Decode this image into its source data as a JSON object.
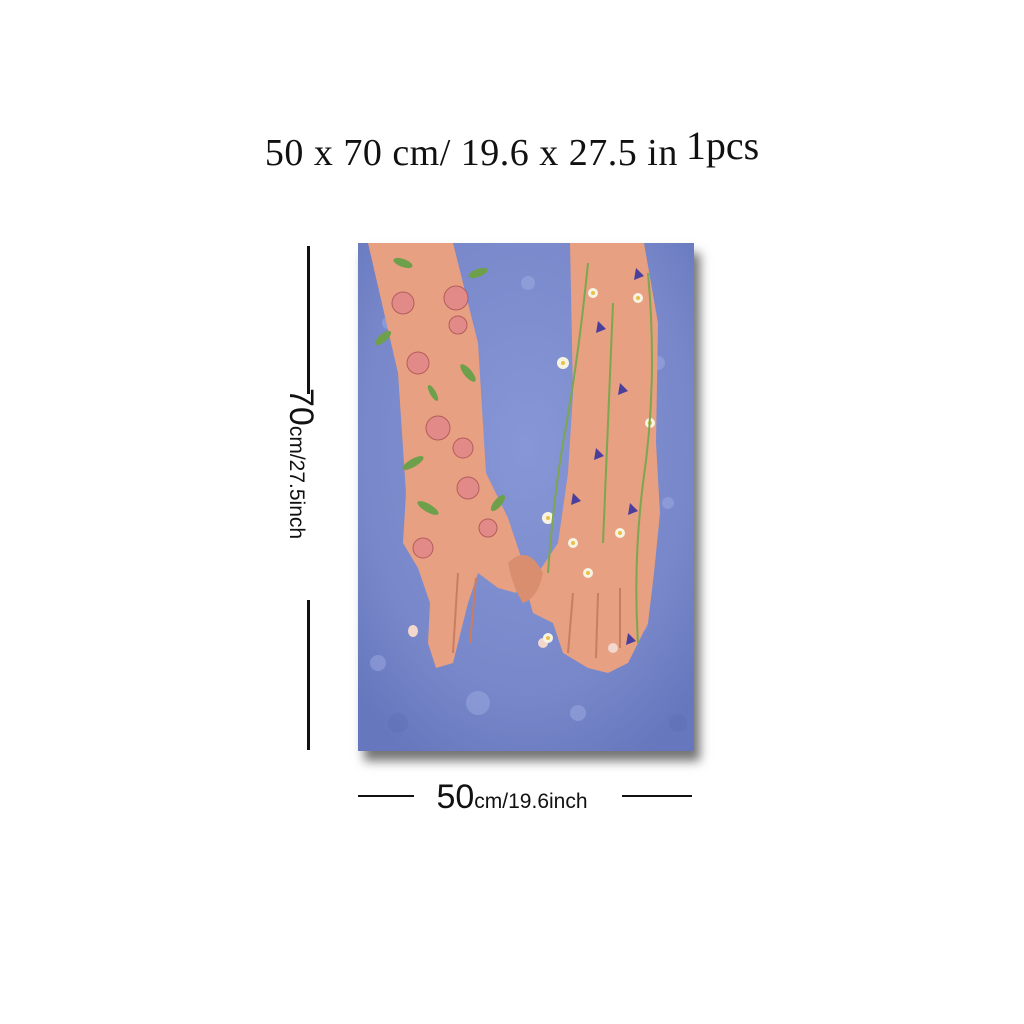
{
  "header": {
    "size_text": "50 x 70 cm/ 19.6 x 27.5 in",
    "count_text": "1pcs"
  },
  "height_dimension": {
    "value": "70",
    "unit": "cm/27.5inch"
  },
  "width_dimension": {
    "value": "50",
    "unit": "cm/19.6inch"
  },
  "artwork": {
    "icon": "pinky-promise-hands-floral-painting",
    "background_color": "#7f8fd0",
    "skin_color": "#e7a081"
  }
}
